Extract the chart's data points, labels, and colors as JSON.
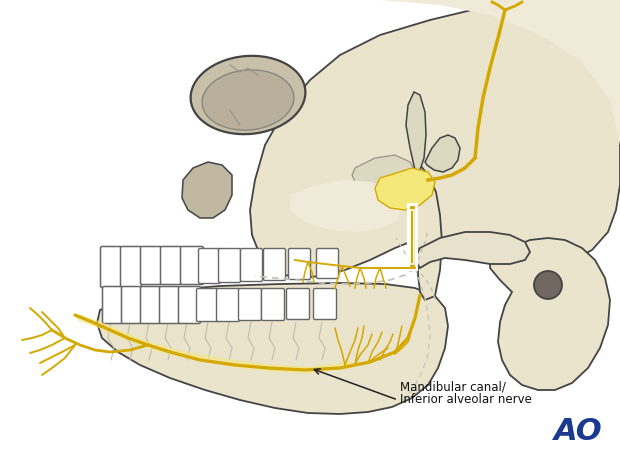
{
  "bg_color": "#ffffff",
  "skull_fill": "#eae4cc",
  "skull_fill2": "#f0ead8",
  "skull_stroke": "#444444",
  "skull_stroke_lw": 1.3,
  "nerve_color": "#d4a800",
  "nerve_light": "#f5e87a",
  "nerve_ganglion": "#f0d840",
  "gray_nerve": "#bbbbbb",
  "label_line1": "Mandibular canal/",
  "label_line2": "Inferior alveolar nerve",
  "ao_color": "#1a3a8f",
  "ao_text": "AO",
  "figsize": [
    6.2,
    4.59
  ],
  "dpi": 100
}
